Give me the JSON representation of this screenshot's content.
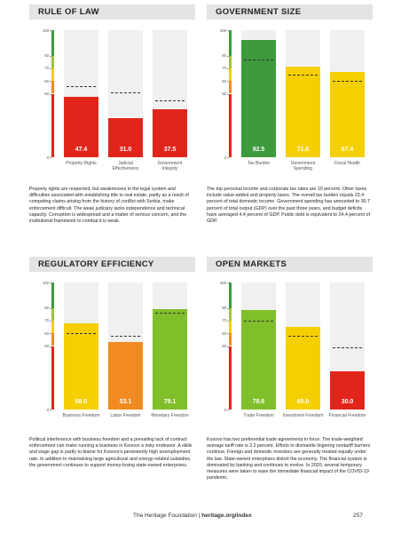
{
  "chart_data": [
    {
      "type": "bar",
      "title": "RULE OF LAW",
      "categories": [
        "Property Rights",
        "Judicial Effectiveness",
        "Government Integrity"
      ],
      "values": [
        47.4,
        31.0,
        37.5
      ],
      "value_labels": [
        "47.4",
        "31.0",
        "37.5"
      ],
      "reference": [
        56,
        51,
        45
      ],
      "colors": [
        "#e1251b",
        "#e1251b",
        "#e1251b"
      ],
      "ylim": [
        0,
        100
      ],
      "yticks": [
        100,
        80,
        70,
        60,
        50,
        0
      ]
    },
    {
      "type": "bar",
      "title": "GOVERNMENT SIZE",
      "categories": [
        "Tax Burden",
        "Government Spending",
        "Fiscal Health"
      ],
      "values": [
        92.5,
        71.6,
        67.4
      ],
      "value_labels": [
        "92.5",
        "71.6",
        "67.4"
      ],
      "reference": [
        77,
        65,
        60
      ],
      "colors": [
        "#3d9a3d",
        "#f5cf00",
        "#f5cf00"
      ],
      "ylim": [
        0,
        100
      ],
      "yticks": [
        100,
        80,
        70,
        60,
        50,
        0
      ]
    },
    {
      "type": "bar",
      "title": "REGULATORY EFFICIENCY",
      "categories": [
        "Business Freedom",
        "Labor Freedom",
        "Monetary Freedom"
      ],
      "values": [
        68.0,
        53.1,
        79.1
      ],
      "value_labels": [
        "68.0",
        "53.1",
        "79.1"
      ],
      "reference": [
        60,
        58,
        76
      ],
      "colors": [
        "#f5cf00",
        "#f28a22",
        "#7fbf2a"
      ],
      "ylim": [
        0,
        100
      ],
      "yticks": [
        100,
        80,
        70,
        60,
        50,
        0
      ]
    },
    {
      "type": "bar",
      "title": "OPEN MARKETS",
      "categories": [
        "Trade Freedom",
        "Investment Freedom",
        "Financial Freedom"
      ],
      "values": [
        78.6,
        65.0,
        30.0
      ],
      "value_labels": [
        "78.6",
        "65.0",
        "30.0"
      ],
      "reference": [
        70,
        58,
        49
      ],
      "colors": [
        "#7fbf2a",
        "#f5cf00",
        "#e1251b"
      ],
      "ylim": [
        0,
        100
      ],
      "yticks": [
        100,
        80,
        70,
        60,
        50,
        0
      ]
    }
  ],
  "paragraphs": [
    "Property rights are respected, but weaknesses in the legal system and difficulties associated with establishing title to real estate, partly as a result of competing claims arising from the history of conflict with Serbia, make enforcement difficult. The weak judiciary lacks independence and technical capacity. Corruption is widespread and a matter of serious concern, and the institutional framework to combat it is weak.",
    "The top personal income and corporate tax rates are 10 percent. Other taxes include value-added and property taxes. The overall tax burden equals 23.4 percent of total domestic income. Government spending has amounted to 30.7 percent of total output (GDP) over the past three years, and budget deficits have averaged 4.4 percent of GDP. Public debt is equivalent to 24.4 percent of GDP.",
    "Political interference with business freedom and a prevailing lack of contract enforcement can make running a business in Kosovo a risky endeavor. A skills and wage gap is partly to blame for Kosovo's persistently high unemployment rate. In addition to maintaining large agricultural and energy-related subsidies, the government continues to support money-losing state-owned enterprises.",
    "Kosovo has two preferential trade agreements in force. The trade-weighted average tariff rate is 3.2 percent. Efforts to dismantle lingering nontariff barriers continue. Foreign and domestic investors are generally treated equally under the law. State-owned enterprises distort the economy. The financial system is dominated by banking and continues to evolve. In 2020, several temporary measures were taken to ease the immediate financial impact of the COVID-19 pandemic."
  ],
  "footer": {
    "publisher": "The Heritage Foundation",
    "separator": "|",
    "url": "heritage.org/index",
    "page": "257"
  }
}
